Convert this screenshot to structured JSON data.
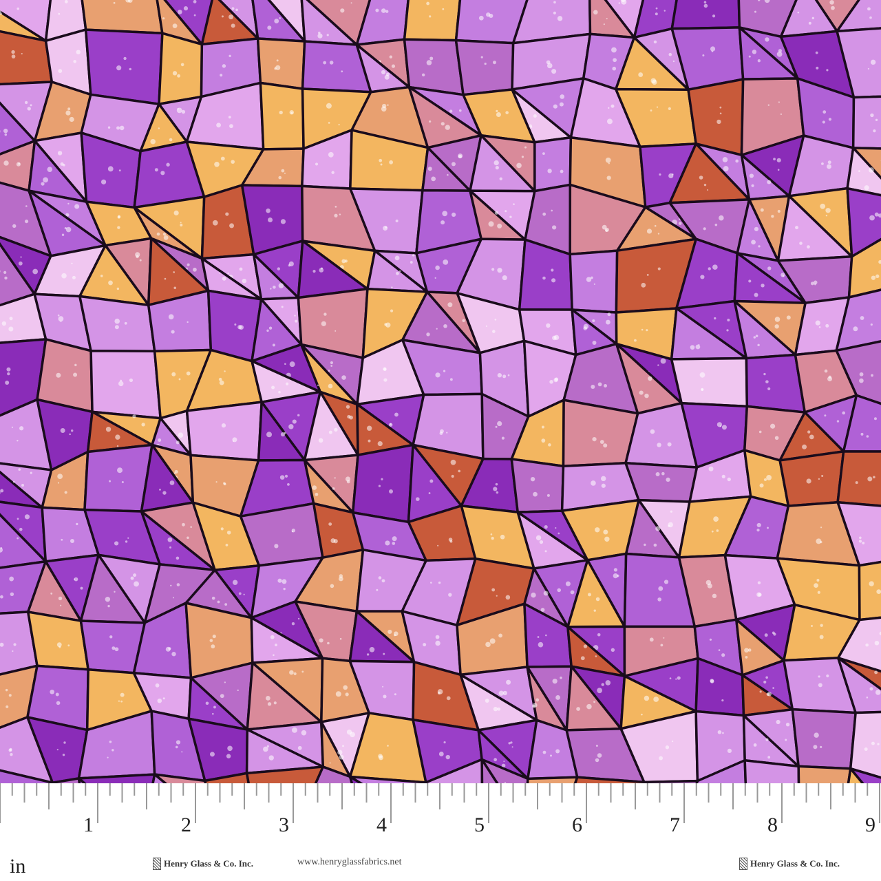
{
  "fabric": {
    "palette": [
      "#b061d6",
      "#9a3fc8",
      "#c47ee0",
      "#e2a6ec",
      "#f0c6f0",
      "#d98a9a",
      "#e8a070",
      "#f3b660",
      "#c85a3a",
      "#8a2cb8",
      "#d494e6",
      "#b86cc8"
    ],
    "leading_color": "#1a0c1c"
  },
  "ruler": {
    "unit": "in",
    "numbers": [
      "1",
      "2",
      "3",
      "4",
      "5",
      "6",
      "7",
      "8",
      "9"
    ],
    "brand_left": "Henry Glass & Co. Inc.",
    "url": "www.henryglassfabrics.net",
    "brand_right": "Henry Glass & Co. Inc."
  }
}
